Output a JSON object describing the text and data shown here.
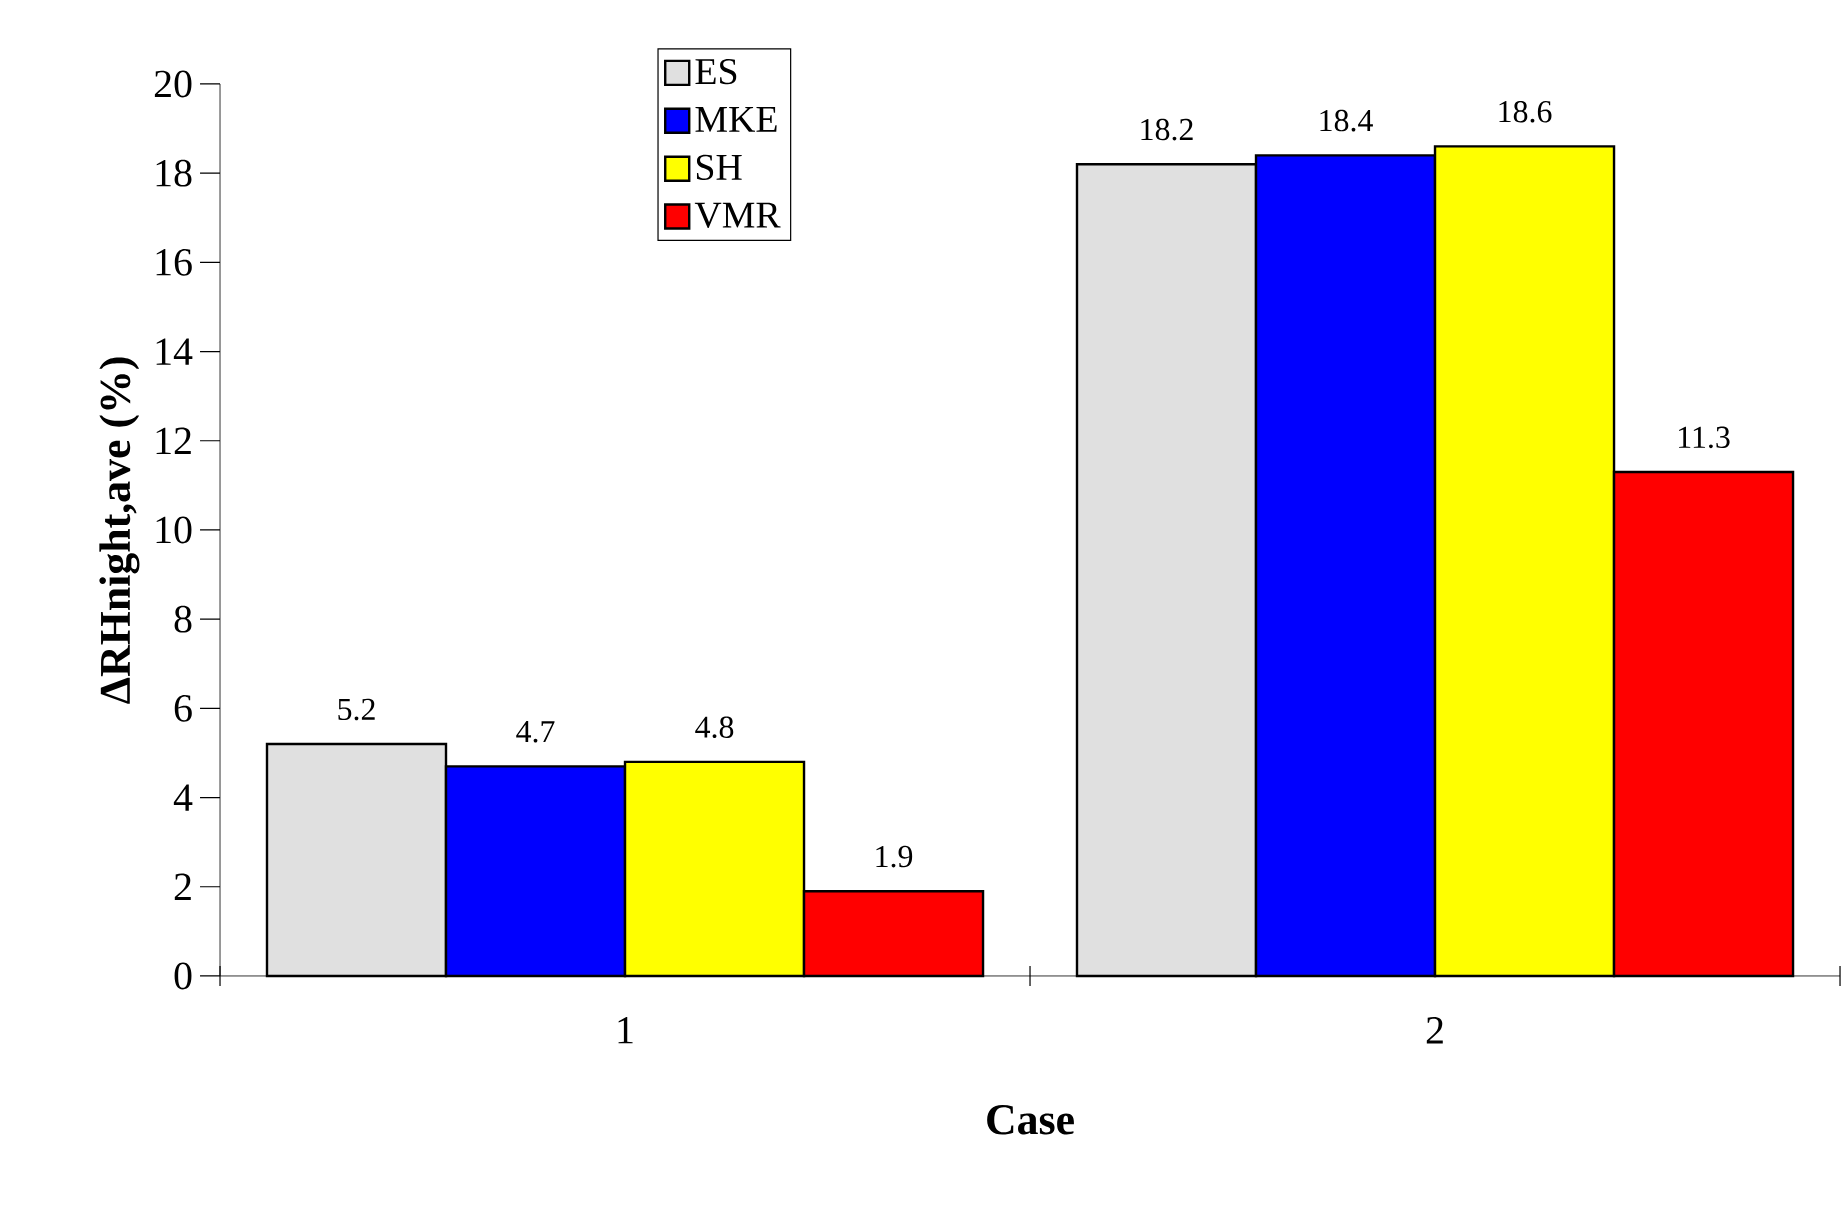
{
  "chart_data": {
    "type": "bar",
    "xlabel": "Case",
    "ylabel": "ΔRHnight,ave (%)",
    "categories": [
      "1",
      "2"
    ],
    "series": [
      {
        "name": "ES",
        "color": "#e0e0e0",
        "values": [
          5.2,
          18.2
        ]
      },
      {
        "name": "MKE",
        "color": "#0000ff",
        "values": [
          4.7,
          18.4
        ]
      },
      {
        "name": "SH",
        "color": "#ffff00",
        "values": [
          4.8,
          18.6
        ]
      },
      {
        "name": "VMR",
        "color": "#ff0000",
        "values": [
          1.9,
          11.3
        ]
      }
    ],
    "ylim": [
      0,
      20
    ],
    "yticks": [
      0,
      2,
      4,
      6,
      8,
      10,
      12,
      14,
      16,
      18,
      20
    ],
    "data_labels": true,
    "legend": "top",
    "grid": false
  }
}
